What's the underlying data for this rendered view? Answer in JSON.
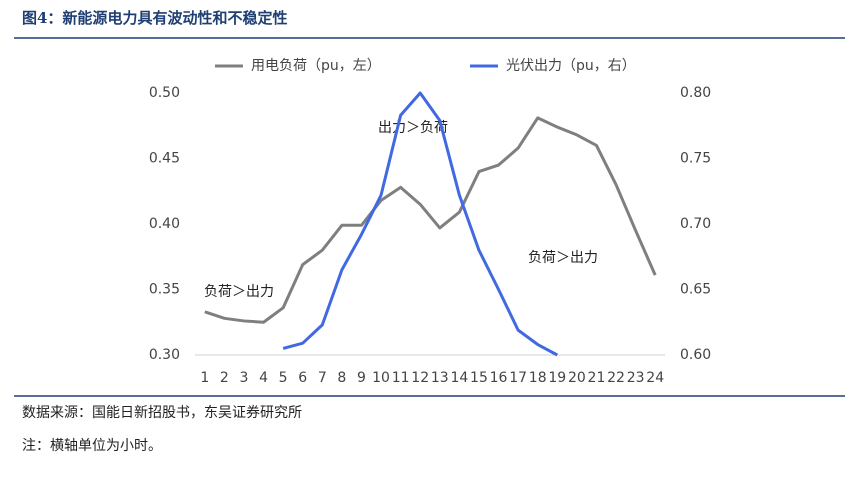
{
  "chart_data": {
    "type": "line",
    "title": "图4：新能源电力具有波动性和不稳定性",
    "source": "数据来源：国能日新招股书，东吴证券研究所",
    "note": "注：横轴单位为小时。",
    "categories": [
      "1",
      "2",
      "3",
      "4",
      "5",
      "6",
      "7",
      "8",
      "9",
      "10",
      "11",
      "12",
      "13",
      "14",
      "15",
      "16",
      "17",
      "18",
      "19",
      "20",
      "21",
      "22",
      "23",
      "24"
    ],
    "series": [
      {
        "name": "用电负荷（pu，左）",
        "color": "#7f7f7f",
        "values": [
          0.333,
          0.328,
          0.326,
          0.325,
          0.336,
          0.369,
          0.38,
          0.399,
          0.399,
          0.418,
          0.428,
          0.415,
          0.397,
          0.409,
          0.44,
          0.445,
          0.458,
          0.481,
          0.474,
          0.468,
          0.46,
          0.43,
          0.395,
          0.361
        ]
      },
      {
        "name": "光伏出力（pu，右）",
        "color": "#4169e1",
        "axis": "y2",
        "values": [
          null,
          null,
          null,
          null,
          0.605,
          0.609,
          0.623,
          0.665,
          0.692,
          0.722,
          0.783,
          0.8,
          0.779,
          0.722,
          0.68,
          0.65,
          0.619,
          0.608,
          0.6,
          null,
          null,
          null,
          null,
          null
        ]
      }
    ],
    "ylim": [
      0.3,
      0.5
    ],
    "yticks": [
      {
        "value": 0.3,
        "label": "0.30"
      },
      {
        "value": 0.35,
        "label": "0.35"
      },
      {
        "value": 0.4,
        "label": "0.40"
      },
      {
        "value": 0.45,
        "label": "0.45"
      },
      {
        "value": 0.5,
        "label": "0.50"
      }
    ],
    "y2lim": [
      0.6,
      0.8
    ],
    "y2ticks": [
      {
        "value": 0.6,
        "label": "0.60"
      },
      {
        "value": 0.65,
        "label": "0.65"
      },
      {
        "value": 0.7,
        "label": "0.70"
      },
      {
        "value": 0.75,
        "label": "0.75"
      },
      {
        "value": 0.8,
        "label": "0.80"
      }
    ],
    "annotations": [
      "出力＞负荷",
      "负荷＞出力",
      "负荷＞出力"
    ],
    "grid": false,
    "legend": "top"
  }
}
